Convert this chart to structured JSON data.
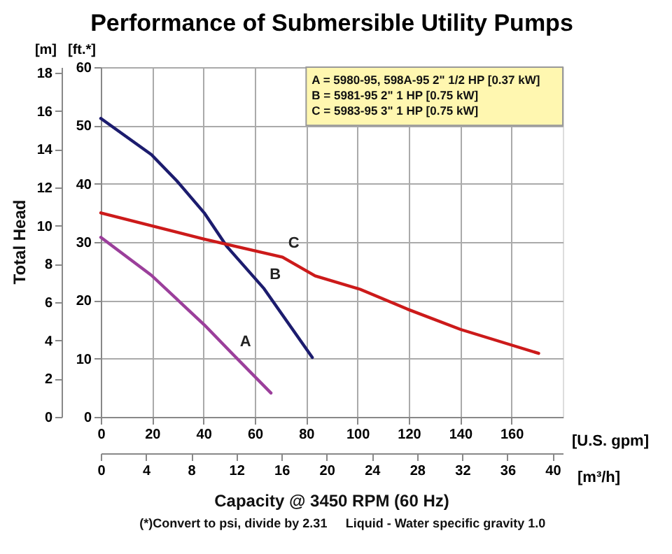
{
  "chart_data": {
    "type": "line",
    "title": "Performance of Submersible Utility Pumps",
    "xlabel": "[U.S. gpm]",
    "x2label": "[m³/h]",
    "ylabel": "[ft.*]",
    "y2label": "[m]",
    "xlim": [
      0,
      180
    ],
    "xticks": [
      0,
      20,
      40,
      60,
      80,
      100,
      120,
      140,
      160
    ],
    "x2lim": [
      0,
      40.9
    ],
    "x2ticks": [
      0,
      4,
      8,
      12,
      16,
      20,
      24,
      28,
      32,
      36,
      40
    ],
    "ylim": [
      0,
      60
    ],
    "yticks": [
      0,
      10,
      20,
      30,
      40,
      50,
      60
    ],
    "y2lim": [
      0,
      18.3
    ],
    "y2ticks": [
      0,
      2,
      4,
      6,
      8,
      10,
      12,
      14,
      16,
      18
    ],
    "grid": true,
    "line_style": "solid",
    "marker": "none",
    "series": [
      {
        "color": "#9b3f9b",
        "x": [
          0,
          19.7,
          40.3,
          52,
          66.3
        ],
        "values": [
          30.8,
          24.3,
          15.8,
          10.5,
          4.1
        ]
      },
      {
        "color": "#1c1c6e",
        "x": [
          0,
          19.7,
          29.6,
          40.3,
          49,
          63.6,
          82.4
        ],
        "values": [
          51.2,
          45,
          40.5,
          35,
          29.3,
          22,
          10.2
        ]
      },
      {
        "color": "#cc1a1a",
        "x": [
          0,
          40.3,
          70.8,
          83.5,
          101,
          119.4,
          140.2,
          160.2,
          170.6
        ],
        "values": [
          35,
          30.5,
          27.4,
          24.2,
          21.9,
          18.5,
          15,
          12.3,
          10.9
        ]
      }
    ],
    "annotations": [
      "A = 5980-95, 598A-95 2\" 1/2 HP [0.37 kW]",
      "B = 5981-95 2\" 1 HP [0.75 kW]",
      "C = 5983-95 3\" 1 HP [0.75 kW]",
      "Capacity @ 3450 RPM (60 Hz)",
      "(*)Convert to psi, divide by 2.31",
      "Liquid - Water specific gravity 1.0",
      "Total Head",
      {
        "text": "A",
        "x": 52,
        "y": 10.5
      },
      {
        "text": "B",
        "x": 63.6,
        "y": 22
      },
      {
        "text": "C",
        "x": 70.8,
        "y": 27.4
      }
    ]
  }
}
